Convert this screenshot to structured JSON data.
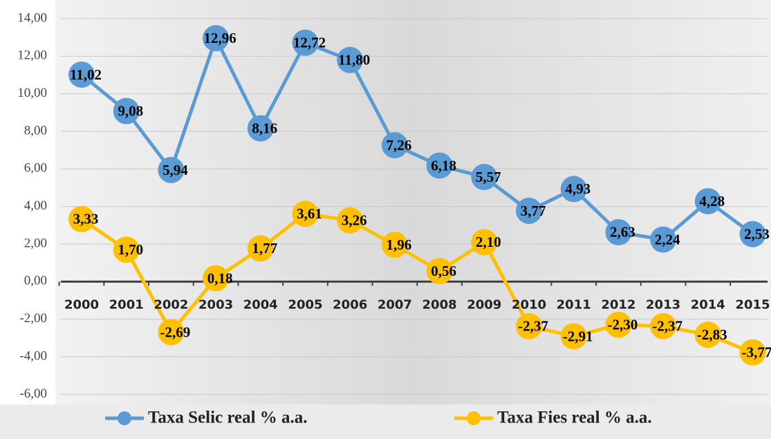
{
  "chart_data": {
    "type": "line",
    "categories": [
      "2000",
      "2001",
      "2002",
      "2003",
      "2004",
      "2005",
      "2006",
      "2007",
      "2008",
      "2009",
      "2010",
      "2011",
      "2012",
      "2013",
      "2014",
      "2015"
    ],
    "series": [
      {
        "name": "Taxa Selic real % a.a.",
        "color": "#5b9bd5",
        "values": [
          11.02,
          9.08,
          5.94,
          12.96,
          8.16,
          12.72,
          11.8,
          7.26,
          6.18,
          5.57,
          3.77,
          4.93,
          2.63,
          2.24,
          4.28,
          2.53
        ],
        "value_labels": [
          "11,02",
          "9,08",
          "5,94",
          "12,96",
          "8,16",
          "12,72",
          "11,80",
          "7,26",
          "6,18",
          "5,57",
          "3,77",
          "4,93",
          "2,63",
          "2,24",
          "4,28",
          "2,53"
        ]
      },
      {
        "name": "Taxa Fies real % a.a.",
        "color": "#ffc000",
        "values": [
          3.33,
          1.7,
          -2.69,
          0.18,
          1.77,
          3.61,
          3.26,
          1.96,
          0.56,
          2.1,
          -2.37,
          -2.91,
          -2.3,
          -2.37,
          -2.83,
          -3.77
        ],
        "value_labels": [
          "3,33",
          "1,70",
          "-2,69",
          "0,18",
          "1,77",
          "3,61",
          "3,26",
          "1,96",
          "0,56",
          "2,10",
          "-2,37",
          "-2,91",
          "-2,30",
          "-2,37",
          "-2,83",
          "-3,77"
        ]
      }
    ],
    "ylim": [
      -6,
      14
    ],
    "yticks": [
      {
        "value": -6,
        "label": "-6,00"
      },
      {
        "value": -4,
        "label": "-4,00"
      },
      {
        "value": -2,
        "label": "-2,00"
      },
      {
        "value": 0,
        "label": "0,00"
      },
      {
        "value": 2,
        "label": "2,00"
      },
      {
        "value": 4,
        "label": "4,00"
      },
      {
        "value": 6,
        "label": "6,00"
      },
      {
        "value": 8,
        "label": "8,00"
      },
      {
        "value": 10,
        "label": "10,00"
      },
      {
        "value": 12,
        "label": "12,00"
      },
      {
        "value": 14,
        "label": "14,00"
      }
    ],
    "grid": true,
    "legend": "bottom"
  }
}
